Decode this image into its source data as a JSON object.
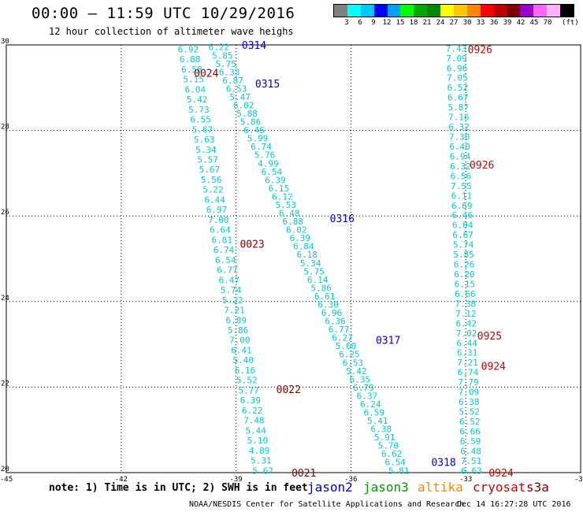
{
  "title": "00:00 – 11:59 UTC 10/29/2016",
  "subtitle": "12 hour collection of altimeter wave heighs",
  "scale": {
    "unit": "(ft)",
    "colors": [
      "#7f7f7f",
      "#00ffff",
      "#00c8ff",
      "#0000ff",
      "#00a0ff",
      "#00ff00",
      "#00a800",
      "#008800",
      "#ffff00",
      "#ffc800",
      "#ff8800",
      "#ff0000",
      "#c00000",
      "#800000",
      "#9900cc",
      "#ff66ff",
      "#ffb0ff",
      "#000000"
    ],
    "ticks": [
      "3",
      "6",
      "9",
      "12",
      "15",
      "18",
      "21",
      "24",
      "27",
      "30",
      "33",
      "36",
      "39",
      "42",
      "45",
      "70"
    ]
  },
  "note": "note: 1) Time is in UTC; 2) SWH is in feet",
  "legend": [
    {
      "name": "jason2",
      "color": "#0000cc"
    },
    {
      "name": "jason3",
      "color": "#009900"
    },
    {
      "name": "altika",
      "color": "#ff8800"
    },
    {
      "name": "cryosat",
      "color": "#cc0000"
    },
    {
      "name": "s3a",
      "color": "#800000"
    }
  ],
  "footer_left": "NOAA/NESDIS Center for Satellite Applications and Research",
  "footer_right": "Dec 14 16:27:28 UTC 2016",
  "chart_data": {
    "type": "scatter",
    "title": "00:00 – 11:59 UTC 10/29/2016",
    "xlim": [
      -45,
      -30
    ],
    "ylim": [
      20,
      30
    ],
    "xticks": [
      "-45",
      "-42",
      "-39",
      "-36",
      "-33",
      "-30"
    ],
    "yticks": [
      "20",
      "22",
      "24",
      "26",
      "28",
      "30"
    ],
    "grid": true,
    "value_color": "#00cccc",
    "tracks": [
      {
        "id": "track-1",
        "start": [
          -40.25,
          29.9
        ],
        "end": [
          -38.3,
          20.05
        ],
        "values": [
          "6.92",
          "6.88",
          "6.58",
          "5.15",
          "6.04",
          "5.42",
          "5.73",
          "6.55",
          "5.67",
          "5.63",
          "5.34",
          "5.57",
          "5.67",
          "5.56",
          "5.22",
          "6.44",
          "6.97",
          "7.00",
          "6.64",
          "6.81",
          "6.74",
          "6.54",
          "6.77",
          "6.47",
          "5.74",
          "5.22",
          "7.21",
          "6.89",
          "5.86",
          "7.00",
          "6.41",
          "5.40",
          "6.16",
          "5.52",
          "5.77",
          "6.39",
          "6.22",
          "7.48",
          "5.44",
          "5.10",
          "4.89",
          "5.31",
          "5.67"
        ]
      },
      {
        "id": "track-2",
        "start": [
          -39.45,
          29.95
        ],
        "end": [
          -34.75,
          20.05
        ],
        "values": [
          "6.22",
          "5.85",
          "5.75",
          "6.33",
          "6.87",
          "6.53",
          "5.47",
          "6.02",
          "5.88",
          "5.86",
          "6.46",
          "5.99",
          "6.74",
          "5.76",
          "4.99",
          "6.54",
          "6.39",
          "6.15",
          "6.12",
          "5.53",
          "6.48",
          "6.88",
          "6.02",
          "6.39",
          "6.84",
          "6.18",
          "5.34",
          "5.75",
          "6.14",
          "5.86",
          "6.61",
          "6.30",
          "6.96",
          "6.36",
          "6.77",
          "6.27",
          "5.60",
          "6.25",
          "6.53",
          "5.42",
          "6.35",
          "6.79",
          "6.37",
          "6.24",
          "6.59",
          "5.41",
          "6.38",
          "5.91",
          "5.70",
          "6.62",
          "6.54",
          "5.81"
        ]
      },
      {
        "id": "track-3",
        "start": [
          -33.25,
          29.92
        ],
        "end": [
          -32.85,
          20.05
        ],
        "values": [
          "7.43",
          "7.09",
          "6.96",
          "7.05",
          "6.52",
          "6.67",
          "5.87",
          "7.16",
          "6.32",
          "7.30",
          "6.40",
          "6.94",
          "6.32",
          "6.56",
          "7.55",
          "6.11",
          "6.69",
          "6.46",
          "6.04",
          "6.67",
          "5.74",
          "5.85",
          "6.26",
          "6.20",
          "6.15",
          "6.66",
          "7.38",
          "7.12",
          "6.42",
          "7.02",
          "6.44",
          "6.31",
          "7.21",
          "6.74",
          "7.79",
          "7.09",
          "6.38",
          "5.52",
          "6.52",
          "6.66",
          "6.59",
          "6.48",
          "7.51",
          "6.63"
        ]
      }
    ],
    "time_labels": [
      {
        "text": "0314",
        "lon": -38.85,
        "lat": 30.0,
        "color": "#0000cc"
      },
      {
        "text": "0315",
        "lon": -38.5,
        "lat": 29.1,
        "color": "#0000cc"
      },
      {
        "text": "0316",
        "lon": -36.55,
        "lat": 25.95,
        "color": "#0000cc"
      },
      {
        "text": "0317",
        "lon": -35.35,
        "lat": 23.1,
        "color": "#0000cc"
      },
      {
        "text": "0318",
        "lon": -33.9,
        "lat": 20.25,
        "color": "#0000cc"
      },
      {
        "text": "0024",
        "lon": -40.1,
        "lat": 29.35,
        "color": "#800000"
      },
      {
        "text": "0023",
        "lon": -38.9,
        "lat": 25.35,
        "color": "#800000"
      },
      {
        "text": "0022",
        "lon": -37.95,
        "lat": 21.95,
        "color": "#800000"
      },
      {
        "text": "0021",
        "lon": -37.55,
        "lat": 20.0,
        "color": "#800000"
      },
      {
        "text": "0926",
        "lon": -32.95,
        "lat": 29.9,
        "color": "#cc0000"
      },
      {
        "text": "0926",
        "lon": -32.9,
        "lat": 27.2,
        "color": "#cc0000"
      },
      {
        "text": "0925",
        "lon": -32.7,
        "lat": 23.2,
        "color": "#cc0000"
      },
      {
        "text": "0924",
        "lon": -32.6,
        "lat": 22.5,
        "color": "#cc0000"
      },
      {
        "text": "0924",
        "lon": -32.4,
        "lat": 20.0,
        "color": "#cc0000"
      }
    ]
  }
}
